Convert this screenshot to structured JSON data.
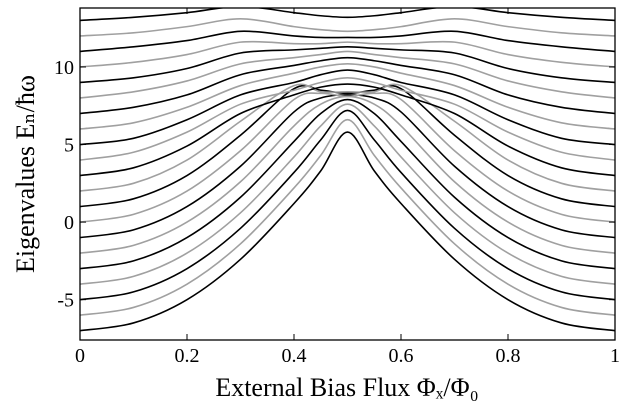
{
  "chart_data": {
    "type": "line",
    "xlabel": "External Bias Flux Φₓ/Φ₀",
    "ylabel": "Eigenvalues Eₙ/ħω",
    "xlim": [
      0,
      1
    ],
    "ylim": [
      -7.6,
      13.8
    ],
    "xticks": [
      0,
      0.2,
      0.4,
      0.6,
      0.8,
      1
    ],
    "yticks": [
      -5,
      0,
      5,
      10
    ],
    "grid": false,
    "x": [
      0,
      0.1,
      0.2,
      0.3,
      0.4,
      0.45,
      0.5,
      0.55,
      0.6,
      0.7,
      0.8,
      0.9,
      1
    ],
    "series": [
      {
        "color": "#000000",
        "values": [
          -7,
          -6.5,
          -5.0,
          -2.4,
          1.2,
          3.3,
          5.8,
          3.3,
          1.2,
          -2.4,
          -5.0,
          -6.5,
          -7
        ]
      },
      {
        "color": "#a0a0a0",
        "values": [
          -6,
          -5.5,
          -4.0,
          -1.4,
          2.2,
          4.3,
          6.6,
          4.3,
          2.2,
          -1.4,
          -4.0,
          -5.5,
          -6
        ]
      },
      {
        "color": "#000000",
        "values": [
          -5,
          -4.5,
          -3.0,
          -0.4,
          3.2,
          5.3,
          7.2,
          5.3,
          3.2,
          -0.4,
          -3.0,
          -4.5,
          -5
        ]
      },
      {
        "color": "#a0a0a0",
        "values": [
          -4,
          -3.5,
          -2.0,
          0.6,
          4.2,
          6.2,
          7.6,
          6.2,
          4.2,
          0.6,
          -2.0,
          -3.5,
          -4
        ]
      },
      {
        "color": "#000000",
        "values": [
          -3,
          -2.5,
          -1.0,
          1.6,
          5.2,
          7.0,
          7.9,
          7.0,
          5.2,
          1.6,
          -1.0,
          -2.5,
          -3
        ]
      },
      {
        "color": "#a0a0a0",
        "values": [
          -2,
          -1.5,
          0.0,
          2.6,
          6.2,
          7.6,
          8.1,
          7.6,
          6.2,
          2.6,
          0.0,
          -1.5,
          -2
        ]
      },
      {
        "color": "#000000",
        "values": [
          -1,
          -0.5,
          1.0,
          3.6,
          7.1,
          8.0,
          8.2,
          8.0,
          7.1,
          3.6,
          1.0,
          -0.5,
          -1
        ]
      },
      {
        "color": "#a0a0a0",
        "values": [
          0,
          0.5,
          2.0,
          4.6,
          7.9,
          8.3,
          8.1,
          8.3,
          7.9,
          4.6,
          2.0,
          0.5,
          0
        ]
      },
      {
        "color": "#000000",
        "values": [
          1,
          1.5,
          3.0,
          5.6,
          8.6,
          8.5,
          8.3,
          8.5,
          8.6,
          5.6,
          3.0,
          1.5,
          1
        ]
      },
      {
        "color": "#a0a0a0",
        "values": [
          2,
          2.5,
          4.0,
          6.5,
          8.8,
          8.4,
          8.4,
          8.4,
          8.8,
          6.5,
          4.0,
          2.5,
          2
        ]
      },
      {
        "color": "#000000",
        "values": [
          3,
          3.5,
          4.9,
          7.0,
          8.2,
          8.7,
          8.9,
          8.7,
          8.2,
          7.0,
          4.9,
          3.5,
          3
        ]
      },
      {
        "color": "#a0a0a0",
        "values": [
          4,
          4.5,
          5.8,
          7.6,
          8.5,
          9.0,
          9.3,
          9.0,
          8.5,
          7.6,
          5.8,
          4.5,
          4
        ]
      },
      {
        "color": "#000000",
        "values": [
          5,
          5.4,
          6.6,
          8.2,
          9.0,
          9.5,
          9.8,
          9.5,
          9.0,
          8.2,
          6.6,
          5.4,
          5
        ]
      },
      {
        "color": "#a0a0a0",
        "values": [
          6,
          6.4,
          7.4,
          8.8,
          9.6,
          10.0,
          10.2,
          10.0,
          9.6,
          8.8,
          7.4,
          6.4,
          6
        ]
      },
      {
        "color": "#000000",
        "values": [
          7,
          7.4,
          8.2,
          9.5,
          10.1,
          10.4,
          10.6,
          10.4,
          10.1,
          9.5,
          8.2,
          7.4,
          7
        ]
      },
      {
        "color": "#a0a0a0",
        "values": [
          8,
          8.4,
          9.1,
          10.2,
          10.6,
          10.8,
          11.0,
          10.8,
          10.6,
          10.2,
          9.1,
          8.4,
          8
        ]
      },
      {
        "color": "#000000",
        "values": [
          9,
          9.3,
          9.9,
          10.9,
          11.1,
          11.2,
          11.3,
          11.2,
          11.1,
          10.9,
          9.9,
          9.3,
          9
        ]
      },
      {
        "color": "#a0a0a0",
        "values": [
          10,
          10.3,
          10.8,
          11.6,
          11.5,
          11.5,
          11.6,
          11.5,
          11.5,
          11.6,
          10.8,
          10.3,
          10
        ]
      },
      {
        "color": "#000000",
        "values": [
          11,
          11.3,
          11.7,
          12.3,
          12.0,
          11.9,
          11.9,
          11.9,
          12.0,
          12.3,
          11.7,
          11.3,
          11
        ]
      },
      {
        "color": "#a0a0a0",
        "values": [
          12,
          12.2,
          12.6,
          13.1,
          12.6,
          12.4,
          12.3,
          12.4,
          12.6,
          13.1,
          12.6,
          12.2,
          12
        ]
      },
      {
        "color": "#000000",
        "values": [
          13,
          13.2,
          13.5,
          13.9,
          13.5,
          13.3,
          13.2,
          13.3,
          13.5,
          13.9,
          13.5,
          13.2,
          13
        ]
      }
    ]
  }
}
